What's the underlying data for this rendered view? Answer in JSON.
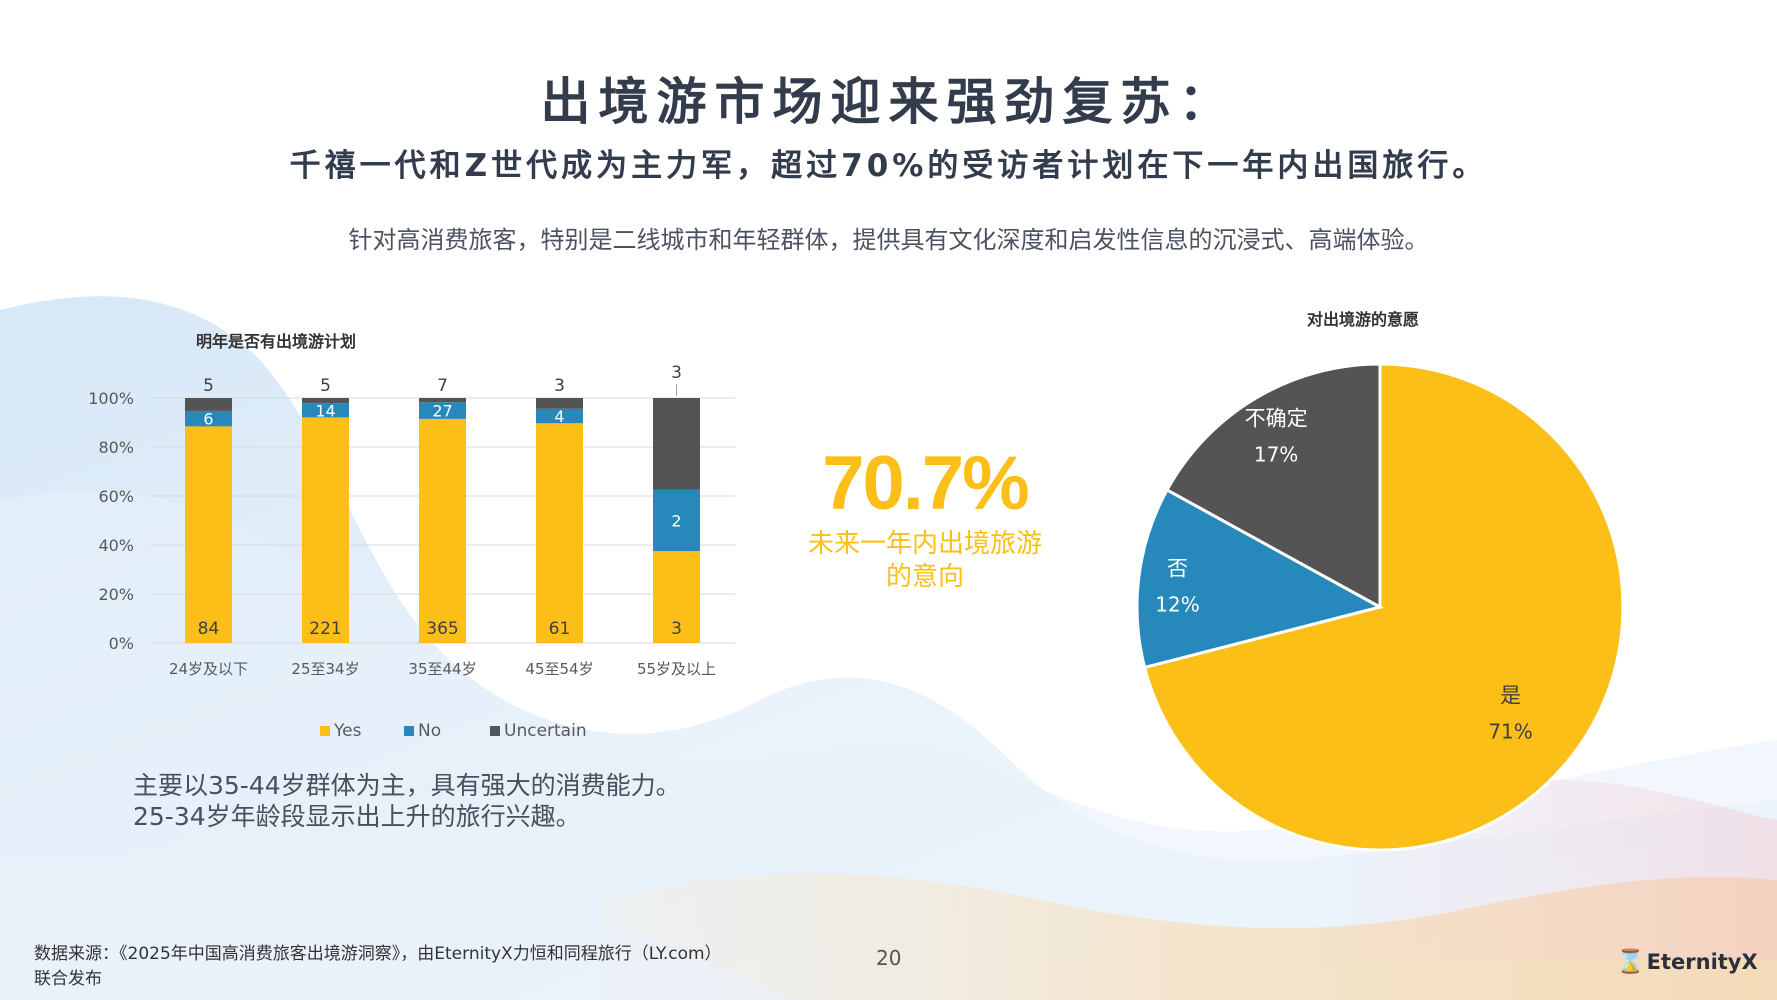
{
  "header": {
    "title": "出境游市场迎来强劲复苏：",
    "subtitle": "千禧一代和Z世代成为主力军，超过70%的受访者计划在下一年内出国旅行。",
    "tagline": "针对高消费旅客，特别是二线城市和年轻群体，提供具有文化深度和启发性信息的沉浸式、高端体验。"
  },
  "highlight": {
    "value": "70.7%",
    "caption_line1": "未来一年内出境旅游",
    "caption_line2": "的意向"
  },
  "note": {
    "line1": "主要以35-44岁群体为主，具有强大的消费能力。",
    "line2": "25-34岁年龄段显示出上升的旅行兴趣。"
  },
  "footer": {
    "source_line1": "数据来源：《2025年中国高消费旅客出境游洞察》，由EternityX力恒和同程旅行（LY.com）",
    "source_line2": "联合发布",
    "page_number": "20",
    "logo_text": "EternityX"
  },
  "colors": {
    "yes": "#fbbf17",
    "no": "#2788bb",
    "uncertain": "#545454"
  },
  "chart_data": [
    {
      "type": "bar",
      "stacked": "percent",
      "title": "明年是否有出境游计划",
      "categories": [
        "24岁及以下",
        "25至34岁",
        "35至44岁",
        "45至54岁",
        "55岁及以上"
      ],
      "series": [
        {
          "name": "Yes",
          "values": [
            84,
            221,
            365,
            61,
            3
          ],
          "color": "#fbbf17"
        },
        {
          "name": "No",
          "values": [
            6,
            14,
            27,
            4,
            2
          ],
          "color": "#2788bb"
        },
        {
          "name": "Uncertain",
          "values": [
            5,
            5,
            7,
            3,
            3
          ],
          "color": "#545454"
        }
      ],
      "y_ticks": [
        "0%",
        "20%",
        "40%",
        "60%",
        "80%",
        "100%"
      ],
      "ylim": [
        0,
        100
      ],
      "grid": true,
      "legend": "bottom"
    },
    {
      "type": "pie",
      "title": "对出境游的意愿",
      "slices": [
        {
          "label": "是",
          "value": 71,
          "value_label": "71%",
          "color": "#fbbf17"
        },
        {
          "label": "否",
          "value": 12,
          "value_label": "12%",
          "color": "#2788bb"
        },
        {
          "label": "不确定",
          "value": 17,
          "value_label": "17%",
          "color": "#545454"
        }
      ],
      "start": "top",
      "direction": "clockwise"
    }
  ]
}
